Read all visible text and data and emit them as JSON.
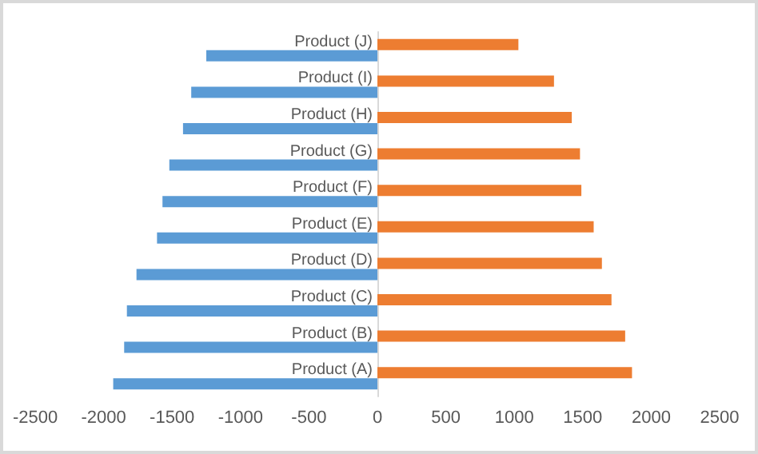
{
  "chart_data": {
    "type": "bar",
    "orientation": "horizontal",
    "categories": [
      "Product (J)",
      "Product (I)",
      "Product (H)",
      "Product (G)",
      "Product (F)",
      "Product (E)",
      "Product (D)",
      "Product (C)",
      "Product (B)",
      "Product (A)"
    ],
    "series": [
      {
        "color": "#ed7d31",
        "values": [
          1030,
          1290,
          1420,
          1480,
          1490,
          1580,
          1640,
          1710,
          1810,
          1860
        ]
      },
      {
        "color": "#5b9bd5",
        "values": [
          -1250,
          -1360,
          -1420,
          -1520,
          -1570,
          -1610,
          -1760,
          -1830,
          -1850,
          -1930
        ]
      }
    ],
    "xlim": [
      -2500,
      2500
    ],
    "xticks": [
      -2500,
      -2000,
      -1500,
      -1000,
      -500,
      0,
      500,
      1000,
      1500,
      2000,
      2500
    ],
    "grid": false
  }
}
